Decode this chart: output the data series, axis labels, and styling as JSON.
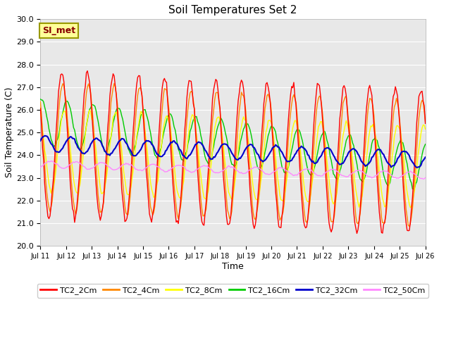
{
  "title": "Soil Temperatures Set 2",
  "xlabel": "Time",
  "ylabel": "Soil Temperature (C)",
  "ylim": [
    20.0,
    30.0
  ],
  "yticks": [
    20.0,
    21.0,
    22.0,
    23.0,
    24.0,
    25.0,
    26.0,
    27.0,
    28.0,
    29.0,
    30.0
  ],
  "xtick_labels": [
    "Jul 11",
    "Jul 12",
    "Jul 13",
    "Jul 14",
    "Jul 15",
    "Jul 16",
    "Jul 17",
    "Jul 18",
    "Jul 19",
    "Jul 20",
    "Jul 21",
    "Jul 22",
    "Jul 23",
    "Jul 24",
    "Jul 25",
    "Jul 26"
  ],
  "annotation_text": "SI_met",
  "annotation_bg": "#ffff99",
  "annotation_border": "#999900",
  "annotation_text_color": "#880000",
  "series_colors": {
    "TC2_2Cm": "#ff0000",
    "TC2_4Cm": "#ff8800",
    "TC2_8Cm": "#ffff00",
    "TC2_16Cm": "#00cc00",
    "TC2_32Cm": "#0000cc",
    "TC2_50Cm": "#ff88ff"
  },
  "fig_bg_color": "#ffffff",
  "plot_bg_color": "#e8e8e8",
  "grid_color": "#ffffff",
  "n_days": 15,
  "n_points_per_day": 24
}
